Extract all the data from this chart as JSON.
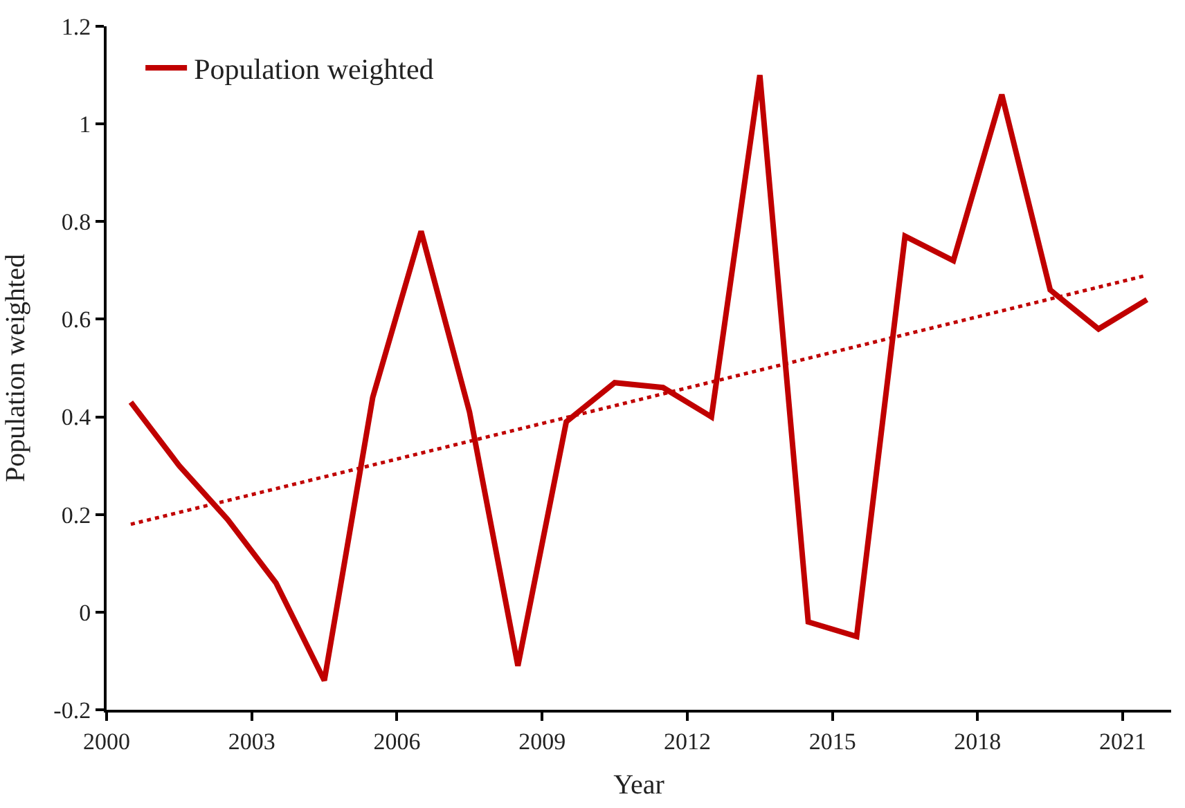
{
  "chart_data": {
    "type": "line",
    "xlabel": "Year",
    "ylabel": "Population weighted",
    "x": [
      2000.5,
      2001.5,
      2002.5,
      2003.5,
      2004.5,
      2005.5,
      2006.5,
      2007.5,
      2008.5,
      2009.5,
      2010.5,
      2011.5,
      2012.5,
      2013.5,
      2014.5,
      2015.5,
      2016.5,
      2017.5,
      2018.5,
      2019.5,
      2020.5,
      2021.5
    ],
    "series": [
      {
        "name": "Population weighted",
        "color": "#c00000",
        "line_style": "solid",
        "values": [
          0.43,
          0.3,
          0.19,
          0.06,
          -0.14,
          0.44,
          0.78,
          0.41,
          -0.11,
          0.39,
          0.47,
          0.46,
          0.4,
          1.1,
          -0.02,
          -0.05,
          0.77,
          0.72,
          1.06,
          0.66,
          0.58,
          0.64
        ]
      },
      {
        "type": "line",
        "color": "#c00000",
        "line_style": "dotted",
        "x": [
          2000.5,
          2021.5
        ],
        "values": [
          0.18,
          0.69
        ]
      }
    ],
    "xlim": [
      2000,
      2022
    ],
    "xticks": [
      2000,
      2003,
      2006,
      2009,
      2012,
      2015,
      2018,
      2021
    ],
    "ylim": [
      -0.2,
      1.2
    ],
    "yticks": [
      -0.2,
      0,
      0.2,
      0.4,
      0.6,
      0.8,
      1,
      1.2
    ],
    "legend": "top left",
    "marker": "none"
  }
}
